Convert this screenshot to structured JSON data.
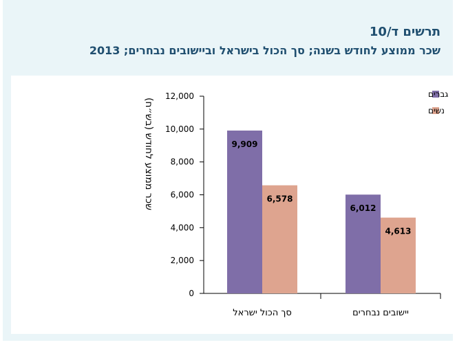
{
  "header": {
    "title": "תרשים ד/10",
    "subtitle": "שכר ממוצע לחודש בשנה; סך הכול בישראל וביישובים נבחרים; 2013"
  },
  "colors": {
    "men": "#7f6ea8",
    "women": "#dea48f",
    "title": "#1f4e6f",
    "panel": "#eaf5f8"
  },
  "chart_data": {
    "type": "bar",
    "title": "שכר ממוצע לחודש בשנה; סך הכול בישראל וביישובים נבחרים; 2013",
    "ylabel": "שכר ממוצע לחודש (בש״ח)",
    "xlabel": "",
    "categories": [
      "סך הכול ישראל",
      "יישובים נבחרים"
    ],
    "series": [
      {
        "name": "גברים",
        "values": [
          9909,
          6012
        ],
        "labels": [
          "9,909",
          "6,012"
        ],
        "color": "#7f6ea8"
      },
      {
        "name": "נשים",
        "values": [
          6578,
          4613
        ],
        "labels": [
          "6,578",
          "4,613"
        ],
        "color": "#dea48f"
      }
    ],
    "ylim": [
      0,
      12000
    ],
    "yticks": [
      0,
      2000,
      4000,
      6000,
      8000,
      10000,
      12000
    ],
    "ytick_labels": [
      "0",
      "2,000",
      "4,000",
      "6,000",
      "8,000",
      "10,000",
      "12,000"
    ],
    "grid": false,
    "legend_position": "top-right"
  }
}
